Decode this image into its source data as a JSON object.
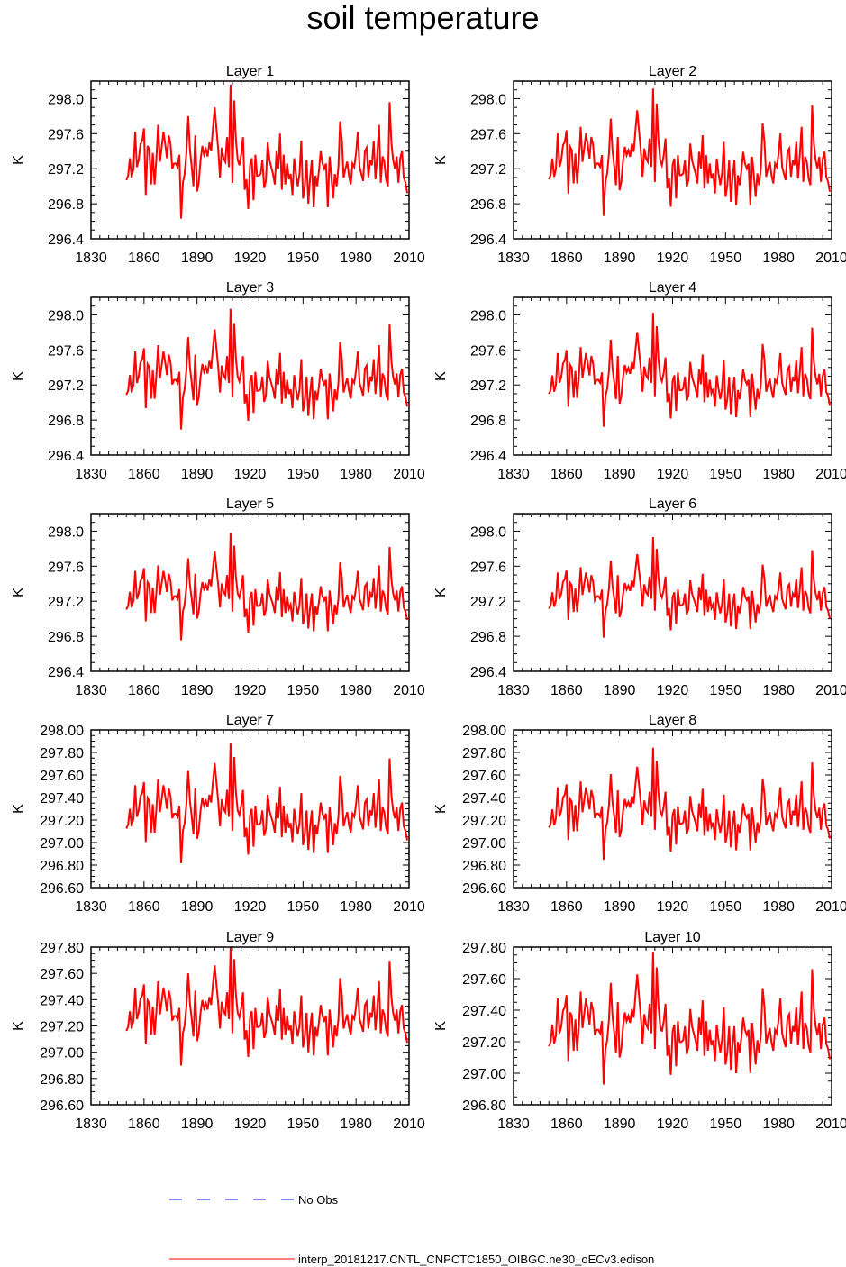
{
  "title": "soil temperature",
  "chart_data": [
    {
      "type": "line",
      "title": "Layer 1",
      "ylabel": "K",
      "xlim": [
        1830,
        2010
      ],
      "ylim": [
        296.4,
        298.2
      ],
      "xticks": [
        "1830",
        "1860",
        "1890",
        "1920",
        "1950",
        "1980",
        "2010"
      ],
      "yticks": [
        "296.4",
        "296.8",
        "297.2",
        "297.6",
        "298.0"
      ],
      "series": [
        {
          "name": "interp_20181217.CNTL_CNPCTC1850_OIBGC.ne30_oECv3.edison",
          "color": "#ff0000"
        }
      ]
    },
    {
      "type": "line",
      "title": "Layer 2",
      "ylabel": "K",
      "xlim": [
        1830,
        2010
      ],
      "ylim": [
        296.4,
        298.2
      ],
      "xticks": [
        "1830",
        "1860",
        "1890",
        "1920",
        "1950",
        "1980",
        "2010"
      ],
      "yticks": [
        "296.4",
        "296.8",
        "297.2",
        "297.6",
        "298.0"
      ],
      "series": [
        {
          "name": "interp_20181217.CNTL_CNPCTC1850_OIBGC.ne30_oECv3.edison",
          "color": "#ff0000"
        }
      ]
    },
    {
      "type": "line",
      "title": "Layer 3",
      "ylabel": "K",
      "xlim": [
        1830,
        2010
      ],
      "ylim": [
        296.4,
        298.2
      ],
      "xticks": [
        "1830",
        "1860",
        "1890",
        "1920",
        "1950",
        "1980",
        "2010"
      ],
      "yticks": [
        "296.4",
        "296.8",
        "297.2",
        "297.6",
        "298.0"
      ],
      "series": [
        {
          "name": "interp_20181217.CNTL_CNPCTC1850_OIBGC.ne30_oECv3.edison",
          "color": "#ff0000"
        }
      ]
    },
    {
      "type": "line",
      "title": "Layer 4",
      "ylabel": "K",
      "xlim": [
        1830,
        2010
      ],
      "ylim": [
        296.4,
        298.2
      ],
      "xticks": [
        "1830",
        "1860",
        "1890",
        "1920",
        "1950",
        "1980",
        "2010"
      ],
      "yticks": [
        "296.4",
        "296.8",
        "297.2",
        "297.6",
        "298.0"
      ],
      "series": [
        {
          "name": "interp_20181217.CNTL_CNPCTC1850_OIBGC.ne30_oECv3.edison",
          "color": "#ff0000"
        }
      ]
    },
    {
      "type": "line",
      "title": "Layer 5",
      "ylabel": "K",
      "xlim": [
        1830,
        2010
      ],
      "ylim": [
        296.4,
        298.2
      ],
      "xticks": [
        "1830",
        "1860",
        "1890",
        "1920",
        "1950",
        "1980",
        "2010"
      ],
      "yticks": [
        "296.4",
        "296.8",
        "297.2",
        "297.6",
        "298.0"
      ],
      "series": [
        {
          "name": "interp_20181217.CNTL_CNPCTC1850_OIBGC.ne30_oECv3.edison",
          "color": "#ff0000"
        }
      ]
    },
    {
      "type": "line",
      "title": "Layer 6",
      "ylabel": "K",
      "xlim": [
        1830,
        2010
      ],
      "ylim": [
        296.4,
        298.2
      ],
      "xticks": [
        "1830",
        "1860",
        "1890",
        "1920",
        "1950",
        "1980",
        "2010"
      ],
      "yticks": [
        "296.4",
        "296.8",
        "297.2",
        "297.6",
        "298.0"
      ],
      "series": [
        {
          "name": "interp_20181217.CNTL_CNPCTC1850_OIBGC.ne30_oECv3.edison",
          "color": "#ff0000"
        }
      ]
    },
    {
      "type": "line",
      "title": "Layer 7",
      "ylabel": "K",
      "xlim": [
        1830,
        2010
      ],
      "ylim": [
        296.6,
        298.0
      ],
      "xticks": [
        "1830",
        "1860",
        "1890",
        "1920",
        "1950",
        "1980",
        "2010"
      ],
      "yticks": [
        "296.60",
        "296.80",
        "297.00",
        "297.20",
        "297.40",
        "297.60",
        "297.80",
        "298.00"
      ],
      "series": [
        {
          "name": "interp_20181217.CNTL_CNPCTC1850_OIBGC.ne30_oECv3.edison",
          "color": "#ff0000"
        }
      ]
    },
    {
      "type": "line",
      "title": "Layer 8",
      "ylabel": "K",
      "xlim": [
        1830,
        2010
      ],
      "ylim": [
        296.6,
        298.0
      ],
      "xticks": [
        "1830",
        "1860",
        "1890",
        "1920",
        "1950",
        "1980",
        "2010"
      ],
      "yticks": [
        "296.60",
        "296.80",
        "297.00",
        "297.20",
        "297.40",
        "297.60",
        "297.80",
        "298.00"
      ],
      "series": [
        {
          "name": "interp_20181217.CNTL_CNPCTC1850_OIBGC.ne30_oECv3.edison",
          "color": "#ff0000"
        }
      ]
    },
    {
      "type": "line",
      "title": "Layer 9",
      "ylabel": "K",
      "xlim": [
        1830,
        2010
      ],
      "ylim": [
        296.6,
        297.8
      ],
      "xticks": [
        "1830",
        "1860",
        "1890",
        "1920",
        "1950",
        "1980",
        "2010"
      ],
      "yticks": [
        "296.60",
        "296.80",
        "297.00",
        "297.20",
        "297.40",
        "297.60",
        "297.80"
      ],
      "series": [
        {
          "name": "interp_20181217.CNTL_CNPCTC1850_OIBGC.ne30_oECv3.edison",
          "color": "#ff0000"
        }
      ]
    },
    {
      "type": "line",
      "title": "Layer 10",
      "ylabel": "K",
      "xlim": [
        1830,
        2010
      ],
      "ylim": [
        296.8,
        297.8
      ],
      "xticks": [
        "1830",
        "1860",
        "1890",
        "1920",
        "1950",
        "1980",
        "2010"
      ],
      "yticks": [
        "296.80",
        "297.00",
        "297.20",
        "297.40",
        "297.60",
        "297.80"
      ],
      "series": [
        {
          "name": "interp_20181217.CNTL_CNPCTC1850_OIBGC.ne30_oECv3.edison",
          "color": "#ff0000"
        }
      ]
    }
  ],
  "base_series": {
    "x_start": 1850,
    "x_end": 2009,
    "values": [
      297.07,
      297.12,
      297.32,
      297.1,
      297.2,
      297.62,
      297.22,
      297.3,
      297.48,
      297.52,
      297.66,
      296.9,
      297.46,
      297.42,
      297.02,
      297.38,
      297.02,
      297.32,
      297.7,
      297.28,
      297.44,
      297.62,
      297.48,
      297.32,
      297.58,
      297.48,
      297.2,
      297.26,
      297.26,
      297.22,
      297.36,
      296.63,
      297.04,
      297.14,
      297.38,
      297.8,
      297.42,
      297.22,
      297.0,
      297.58,
      296.94,
      297.04,
      297.3,
      297.46,
      297.36,
      297.42,
      297.34,
      297.5,
      297.4,
      297.66,
      297.9,
      297.66,
      297.42,
      297.1,
      297.44,
      297.32,
      297.28,
      297.56,
      297.22,
      298.16,
      297.04,
      297.98,
      297.54,
      297.3,
      297.24,
      297.36,
      297.56,
      296.96,
      297.08,
      296.74,
      297.24,
      297.32,
      296.84,
      297.36,
      297.12,
      297.12,
      297.14,
      297.3,
      296.98,
      297.06,
      297.5,
      297.3,
      297.22,
      297.14,
      297.02,
      297.4,
      297.2,
      297.6,
      296.96,
      297.36,
      297.02,
      297.26,
      297.08,
      297.14,
      296.9,
      297.32,
      297.14,
      297.0,
      297.14,
      297.52,
      296.86,
      297.0,
      297.3,
      296.8,
      297.1,
      297.3,
      296.76,
      297.12,
      297.0,
      297.18,
      297.4,
      297.26,
      297.2,
      297.26,
      296.76,
      297.34,
      297.12,
      296.86,
      297.14,
      297.0,
      297.22,
      297.74,
      297.52,
      297.1,
      297.2,
      297.28,
      297.12,
      297.02,
      297.26,
      297.22,
      297.38,
      297.62,
      297.22,
      297.14,
      297.06,
      297.4,
      297.44,
      297.1,
      297.3,
      297.24,
      297.52,
      297.08,
      297.36,
      297.7,
      297.04,
      297.34,
      297.28,
      297.08,
      297.0,
      297.96,
      297.5,
      297.3,
      297.2,
      297.34,
      297.04,
      297.32,
      297.4,
      297.1,
      297.04,
      296.92
    ]
  },
  "legend": [
    {
      "label": "No Obs",
      "color": "#0000ff",
      "style": "dashed"
    },
    {
      "label": "interp_20181217.CNTL_CNPCTC1850_OIBGC.ne30_oECv3.edison",
      "color": "#ff0000",
      "style": "solid"
    }
  ]
}
